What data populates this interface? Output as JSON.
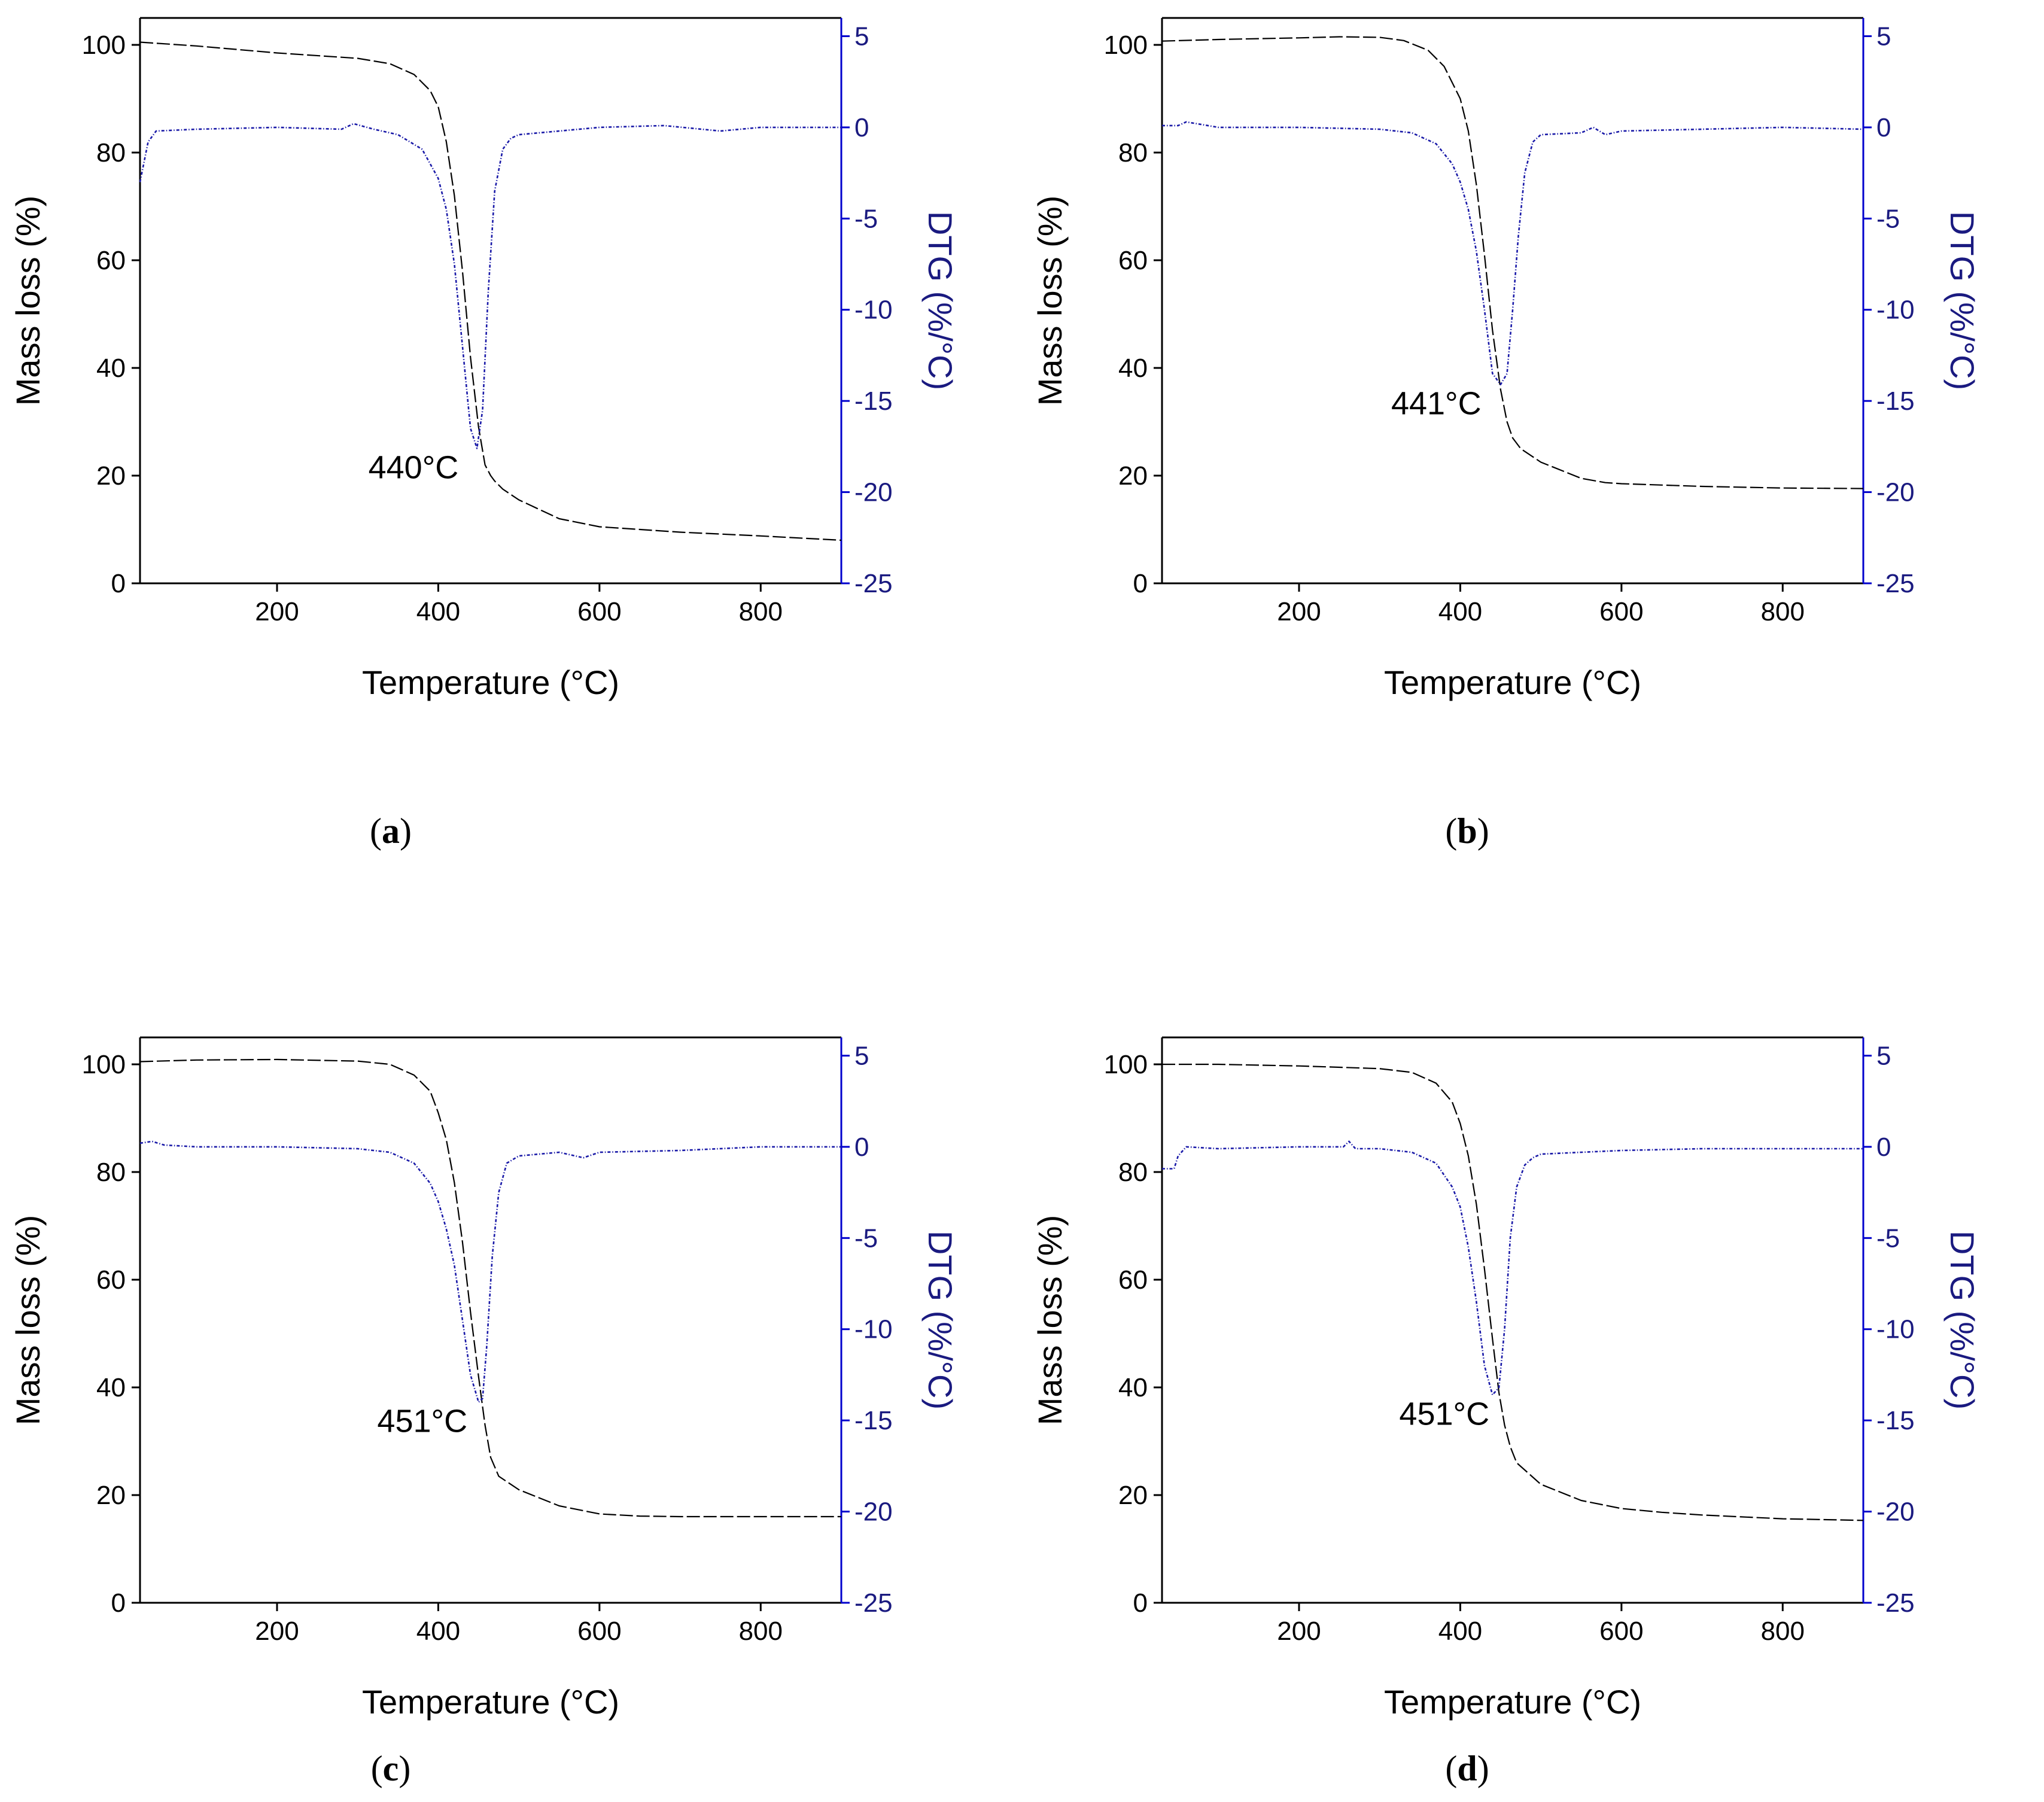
{
  "colors": {
    "axis_left": "#000000",
    "axis_right": "#0000cc",
    "mass_curve": "#000000",
    "dtg_curve": "#1a1aa8",
    "right_label": "#1a1a80"
  },
  "chart_data": [
    {
      "id": "a",
      "caption_letter": "a",
      "type": "line",
      "xlabel": "Temperature (°C)",
      "ylabel": "Mass loss (%)",
      "y2label": "DTG (%/°C)",
      "xlim": [
        30,
        900
      ],
      "ylim": [
        0,
        105
      ],
      "y2lim": [
        -25,
        6
      ],
      "xticks": [
        200,
        400,
        600,
        800
      ],
      "yticks": [
        0,
        20,
        40,
        60,
        80,
        100
      ],
      "y2ticks": [
        -25,
        -20,
        -15,
        -10,
        -5,
        0,
        5
      ],
      "annotation": {
        "text": "440°C",
        "x": 440
      },
      "series": [
        {
          "name": "Mass loss",
          "axis": "left",
          "x": [
            30,
            100,
            200,
            300,
            340,
            370,
            390,
            400,
            410,
            420,
            430,
            440,
            450,
            458,
            465,
            470,
            480,
            500,
            550,
            600,
            700,
            800,
            900
          ],
          "y": [
            100.5,
            99.8,
            98.5,
            97.5,
            96.5,
            94.5,
            91.5,
            88.5,
            82,
            72,
            58,
            42,
            29,
            22,
            20,
            19,
            17.5,
            15.5,
            12,
            10.5,
            9.5,
            8.8,
            8
          ]
        },
        {
          "name": "DTG",
          "axis": "right",
          "x": [
            30,
            40,
            50,
            100,
            200,
            280,
            295,
            320,
            350,
            380,
            400,
            410,
            420,
            430,
            440,
            448,
            455,
            462,
            470,
            480,
            490,
            500,
            550,
            600,
            680,
            750,
            800,
            900
          ],
          "y": [
            -3,
            -0.8,
            -0.2,
            -0.1,
            0,
            -0.1,
            0.2,
            -0.1,
            -0.4,
            -1.2,
            -2.8,
            -4.5,
            -7.5,
            -12,
            -16.5,
            -17.6,
            -15.5,
            -9,
            -3.5,
            -1.2,
            -0.6,
            -0.4,
            -0.2,
            0,
            0.1,
            -0.2,
            0,
            0
          ]
        }
      ]
    },
    {
      "id": "b",
      "caption_letter": "b",
      "type": "line",
      "xlabel": "Temperature (°C)",
      "ylabel": "Mass loss (%)",
      "y2label": "DTG (%/°C)",
      "xlim": [
        30,
        900
      ],
      "ylim": [
        0,
        105
      ],
      "y2lim": [
        -25,
        6
      ],
      "xticks": [
        200,
        400,
        600,
        800
      ],
      "yticks": [
        0,
        20,
        40,
        60,
        80,
        100
      ],
      "y2ticks": [
        -25,
        -20,
        -15,
        -10,
        -5,
        0,
        5
      ],
      "annotation": {
        "text": "441°C",
        "x": 441
      },
      "series": [
        {
          "name": "Mass loss",
          "axis": "left",
          "x": [
            30,
            100,
            200,
            250,
            300,
            330,
            360,
            380,
            400,
            410,
            420,
            430,
            440,
            450,
            458,
            465,
            475,
            500,
            550,
            580,
            600,
            700,
            800,
            900
          ],
          "y": [
            100.7,
            101,
            101.3,
            101.5,
            101.4,
            100.8,
            99,
            96,
            90,
            84,
            74,
            61,
            47,
            36,
            30,
            27,
            25,
            22.5,
            19.5,
            18.7,
            18.5,
            18,
            17.7,
            17.6
          ]
        },
        {
          "name": "DTG",
          "axis": "right",
          "x": [
            30,
            50,
            60,
            100,
            200,
            300,
            340,
            370,
            390,
            400,
            410,
            420,
            430,
            440,
            450,
            458,
            465,
            472,
            480,
            490,
            500,
            550,
            565,
            580,
            600,
            700,
            800,
            900
          ],
          "y": [
            0.1,
            0.1,
            0.3,
            0,
            0,
            -0.1,
            -0.3,
            -0.9,
            -2,
            -3,
            -4.5,
            -6.8,
            -10,
            -13.5,
            -14.1,
            -13.5,
            -10,
            -6,
            -2.5,
            -0.8,
            -0.4,
            -0.3,
            0,
            -0.4,
            -0.2,
            -0.1,
            0,
            -0.1
          ]
        }
      ]
    },
    {
      "id": "c",
      "caption_letter": "c",
      "type": "line",
      "xlabel": "Temperature (°C)",
      "ylabel": "Mass loss (%)",
      "y2label": "DTG (%/°C)",
      "xlim": [
        30,
        900
      ],
      "ylim": [
        0,
        105
      ],
      "y2lim": [
        -25,
        6
      ],
      "xticks": [
        200,
        400,
        600,
        800
      ],
      "yticks": [
        0,
        20,
        40,
        60,
        80,
        100
      ],
      "y2ticks": [
        -25,
        -20,
        -15,
        -10,
        -5,
        0,
        5
      ],
      "annotation": {
        "text": "451°C",
        "x": 451
      },
      "series": [
        {
          "name": "Mass loss",
          "axis": "left",
          "x": [
            30,
            100,
            200,
            300,
            340,
            370,
            390,
            400,
            410,
            420,
            430,
            440,
            450,
            458,
            465,
            475,
            500,
            550,
            600,
            650,
            700,
            800,
            900
          ],
          "y": [
            100.5,
            100.8,
            100.9,
            100.6,
            100,
            98,
            95,
            91,
            86,
            78,
            67,
            54,
            42,
            33,
            27,
            23.5,
            21,
            18,
            16.5,
            16.1,
            16,
            16,
            16
          ]
        },
        {
          "name": "DTG",
          "axis": "right",
          "x": [
            30,
            45,
            60,
            100,
            200,
            300,
            340,
            370,
            390,
            400,
            410,
            420,
            430,
            440,
            450,
            455,
            460,
            467,
            475,
            485,
            500,
            550,
            580,
            600,
            700,
            800,
            900
          ],
          "y": [
            0.2,
            0.3,
            0.1,
            0,
            0,
            -0.1,
            -0.3,
            -0.9,
            -2,
            -3,
            -4.5,
            -6.5,
            -9.5,
            -12.5,
            -14,
            -13.8,
            -11,
            -6,
            -2.5,
            -0.9,
            -0.5,
            -0.3,
            -0.6,
            -0.3,
            -0.2,
            0,
            0
          ]
        }
      ]
    },
    {
      "id": "d",
      "caption_letter": "d",
      "type": "line",
      "xlabel": "Temperature (°C)",
      "ylabel": "Mass loss (%)",
      "y2label": "DTG (%/°C)",
      "xlim": [
        30,
        900
      ],
      "ylim": [
        0,
        105
      ],
      "y2lim": [
        -25,
        6
      ],
      "xticks": [
        200,
        400,
        600,
        800
      ],
      "yticks": [
        0,
        20,
        40,
        60,
        80,
        100
      ],
      "y2ticks": [
        -25,
        -20,
        -15,
        -10,
        -5,
        0,
        5
      ],
      "annotation": {
        "text": "451°C",
        "x": 451
      },
      "series": [
        {
          "name": "Mass loss",
          "axis": "left",
          "x": [
            30,
            100,
            200,
            300,
            340,
            370,
            390,
            400,
            410,
            420,
            430,
            440,
            448,
            455,
            462,
            470,
            500,
            550,
            600,
            650,
            700,
            800,
            900
          ],
          "y": [
            100,
            100,
            99.7,
            99.2,
            98.5,
            96.5,
            93,
            89,
            83,
            74,
            62,
            49,
            39,
            33,
            29,
            26,
            22,
            19,
            17.5,
            16.8,
            16.3,
            15.6,
            15.3
          ]
        },
        {
          "name": "DTG",
          "axis": "right",
          "x": [
            30,
            45,
            50,
            60,
            100,
            200,
            255,
            262,
            270,
            300,
            340,
            370,
            390,
            400,
            410,
            420,
            430,
            440,
            448,
            455,
            462,
            470,
            480,
            490,
            500,
            550,
            600,
            700,
            800,
            900
          ],
          "y": [
            -1.2,
            -1.2,
            -0.5,
            0,
            -0.1,
            0,
            0,
            0.3,
            -0.1,
            -0.1,
            -0.3,
            -0.9,
            -2.2,
            -3.3,
            -5.5,
            -8.5,
            -12,
            -13.6,
            -13.2,
            -10,
            -5,
            -2.2,
            -1,
            -0.6,
            -0.4,
            -0.3,
            -0.2,
            -0.1,
            -0.1,
            -0.1
          ]
        }
      ]
    }
  ]
}
